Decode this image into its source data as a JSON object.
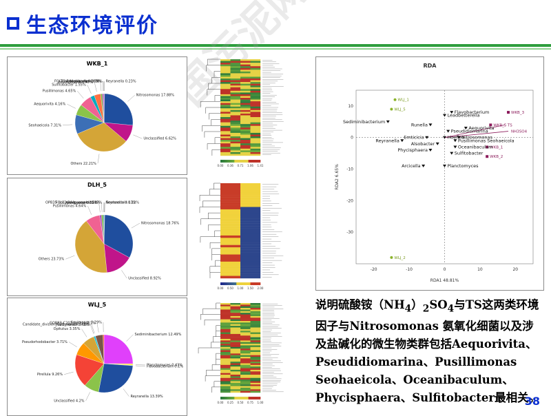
{
  "slide": {
    "title": "生态环境评价",
    "page_number": "38",
    "watermark": "中国污泥网"
  },
  "pie_charts": [
    {
      "title": "WKB_1",
      "labels": [
        "Reyranella 0.23%",
        "Nitrosomonas 17.88%",
        "Unclassified 6.62%",
        "Others 22.21%",
        "Seohaeicola 7.31%",
        "Aequorivita 4.16%",
        "Pusillimonas 4.65%",
        "Sulfitobacter 1.55%",
        "Phycisphaera 2.47%",
        "FGL12-B44_norank 0.66%",
        "Arenibacter 0.55%",
        "Thalassobaculum 0.08%"
      ],
      "values": [
        0.23,
        17.88,
        6.62,
        22.21,
        7.31,
        4.16,
        4.65,
        1.55,
        2.47,
        0.66,
        0.55,
        0.08
      ],
      "colors": [
        "#6f1f7a",
        "#1f4e9e",
        "#c0158a",
        "#d4a537",
        "#3c6fb6",
        "#8bc34a",
        "#f06292",
        "#00acc1",
        "#ff7043",
        "#7cb342",
        "#ab47bc",
        "#26a69a"
      ]
    },
    {
      "title": "DLH_5",
      "labels": [
        "Reyranella 0.13%",
        "Seohaeicola 0.12%",
        "Nitrosomonas 18.76%",
        "Unclassified 8.92%",
        "Others 23.73%",
        "Pusillimonas 4.64%",
        "Arenibacter 0.55%",
        "FGL12-B44_norank 0.59%",
        "OPB35_soil_group_norank 0.27%"
      ],
      "values": [
        0.13,
        0.12,
        18.76,
        8.92,
        23.73,
        4.64,
        0.55,
        0.59,
        0.27
      ],
      "colors": [
        "#6f1f7a",
        "#3c6fb6",
        "#1f4e9e",
        "#c0158a",
        "#d4a537",
        "#f06292",
        "#ab47bc",
        "#7cb342",
        "#26a69a"
      ]
    },
    {
      "title": "WLJ_5",
      "labels": [
        "Sediminibacterium 12.49%",
        "Planctomyces 0.43%",
        "Flavobacterium 0.1%",
        "Reyranella 13.39%",
        "Unclassified 4.2%",
        "Pirellula 9.26%",
        "Pseudorhodobacter 3.71%",
        "Opitutus 3.35%",
        "Pusillimonas 0.41%",
        "Candidate_division_OD1_norank 0.06%",
        "GOBB3-C201_norank 2.1%",
        "Aquimonas 0.29%"
      ],
      "values": [
        12.49,
        0.43,
        0.1,
        13.39,
        4.2,
        9.26,
        3.71,
        3.35,
        0.41,
        0.06,
        2.1,
        0.29
      ],
      "colors": [
        "#e040fb",
        "#ffeb3b",
        "#4caf50",
        "#1f4e9e",
        "#8bc34a",
        "#f44336",
        "#ff9800",
        "#d4a537",
        "#00bcd4",
        "#9c27b0",
        "#795548",
        "#ff5722"
      ]
    }
  ],
  "heatmap_legends": [
    [
      "0.00",
      "0.36",
      "0.71",
      "1.06",
      "1.41"
    ],
    [
      "0.00",
      "0.50",
      "1.00",
      "1.50",
      "2.00"
    ],
    [
      "0.00",
      "0.25",
      "0.50",
      "0.75",
      "1.00"
    ]
  ],
  "rda": {
    "title": "RDA",
    "xlabel": "RDA1  48.81%",
    "ylabel": "RDA2  6.65%",
    "x_ticks": [
      "-20",
      "-10",
      "0",
      "10",
      "20"
    ],
    "y_ticks": [
      "10",
      "0",
      "-10",
      "-20",
      "-30"
    ],
    "samples": [
      {
        "name": "WLJ_1",
        "x": -14,
        "y": 12
      },
      {
        "name": "WLJ_5",
        "x": -15,
        "y": 9
      },
      {
        "name": "WLJ_2",
        "x": -15,
        "y": -38
      },
      {
        "name": "WKB_3",
        "x": 18,
        "y": 8
      },
      {
        "name": "WKB_5",
        "x": 13,
        "y": 4
      },
      {
        "name": "TS",
        "x": 17,
        "y": 4
      },
      {
        "name": "NH3SO4",
        "x": 18,
        "y": 2
      },
      {
        "name": "WKB_1",
        "x": 12,
        "y": -3
      },
      {
        "name": "WKB_2",
        "x": 12,
        "y": -6
      }
    ],
    "species": [
      "Sediminibacterium",
      "Runella",
      "Leadbetterella",
      "Flavobacterium",
      "Reyranella",
      "Emticicia",
      "Alsobacter",
      "Hoeflea",
      "Pseudidiomarina",
      "Aequorivita",
      "Nitrosomonas",
      "Pusillimonas Seohaeicola",
      "Oceanibaculum",
      "Sulfitobacter",
      "Phycisphaera",
      "Arcicella",
      "Planctomyces"
    ]
  },
  "description": {
    "line1": "说明硫酸铵（NH",
    "sub1": "4",
    "line1b": "）",
    "sub2": "2",
    "line1c": "SO",
    "sub3": "4",
    "line1d": "与TS这两类",
    "rest": "环境因子与Nitrosomonas 氨氧化细菌以及涉及盐碱化的微生物类群包括Aequorivita、Pseudidiomarina、Pusillimonas Seohaeicola、Oceanibaculum、Phycisphaera、Sulfitobacter最相关。"
  }
}
